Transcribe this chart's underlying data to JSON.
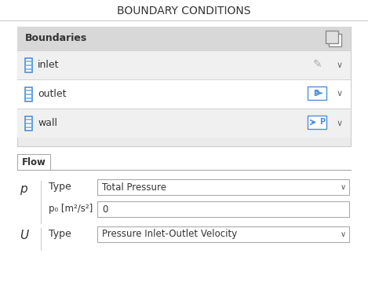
{
  "title": "BOUNDARY CONDITIONS",
  "title_fontsize": 10,
  "title_color": "#333333",
  "bg_color": "#ffffff",
  "panel_bg": "#ebebeb",
  "panel_border": "#cccccc",
  "row_bg_light": "#f0f0f0",
  "row_bg_white": "#ffffff",
  "blue_icon_color": "#4a90d9",
  "text_color": "#333333",
  "label_color": "#555555",
  "dropdown_bg": "#ffffff",
  "dropdown_border": "#aaaaaa",
  "tab_bg": "#ffffff",
  "tab_border": "#aaaaaa",
  "boundaries_label": "Boundaries",
  "boundaries_items": [
    "inlet",
    "outlet",
    "wall"
  ],
  "flow_tab": "Flow",
  "p_label": "p",
  "p_type_label": "Type",
  "p_type_value": "Total Pressure",
  "p0_label": "p₀ [m²/s²]",
  "p0_value": "0",
  "u_label": "U",
  "u_type_label": "Type",
  "u_type_value": "Pressure Inlet-Outlet Velocity"
}
